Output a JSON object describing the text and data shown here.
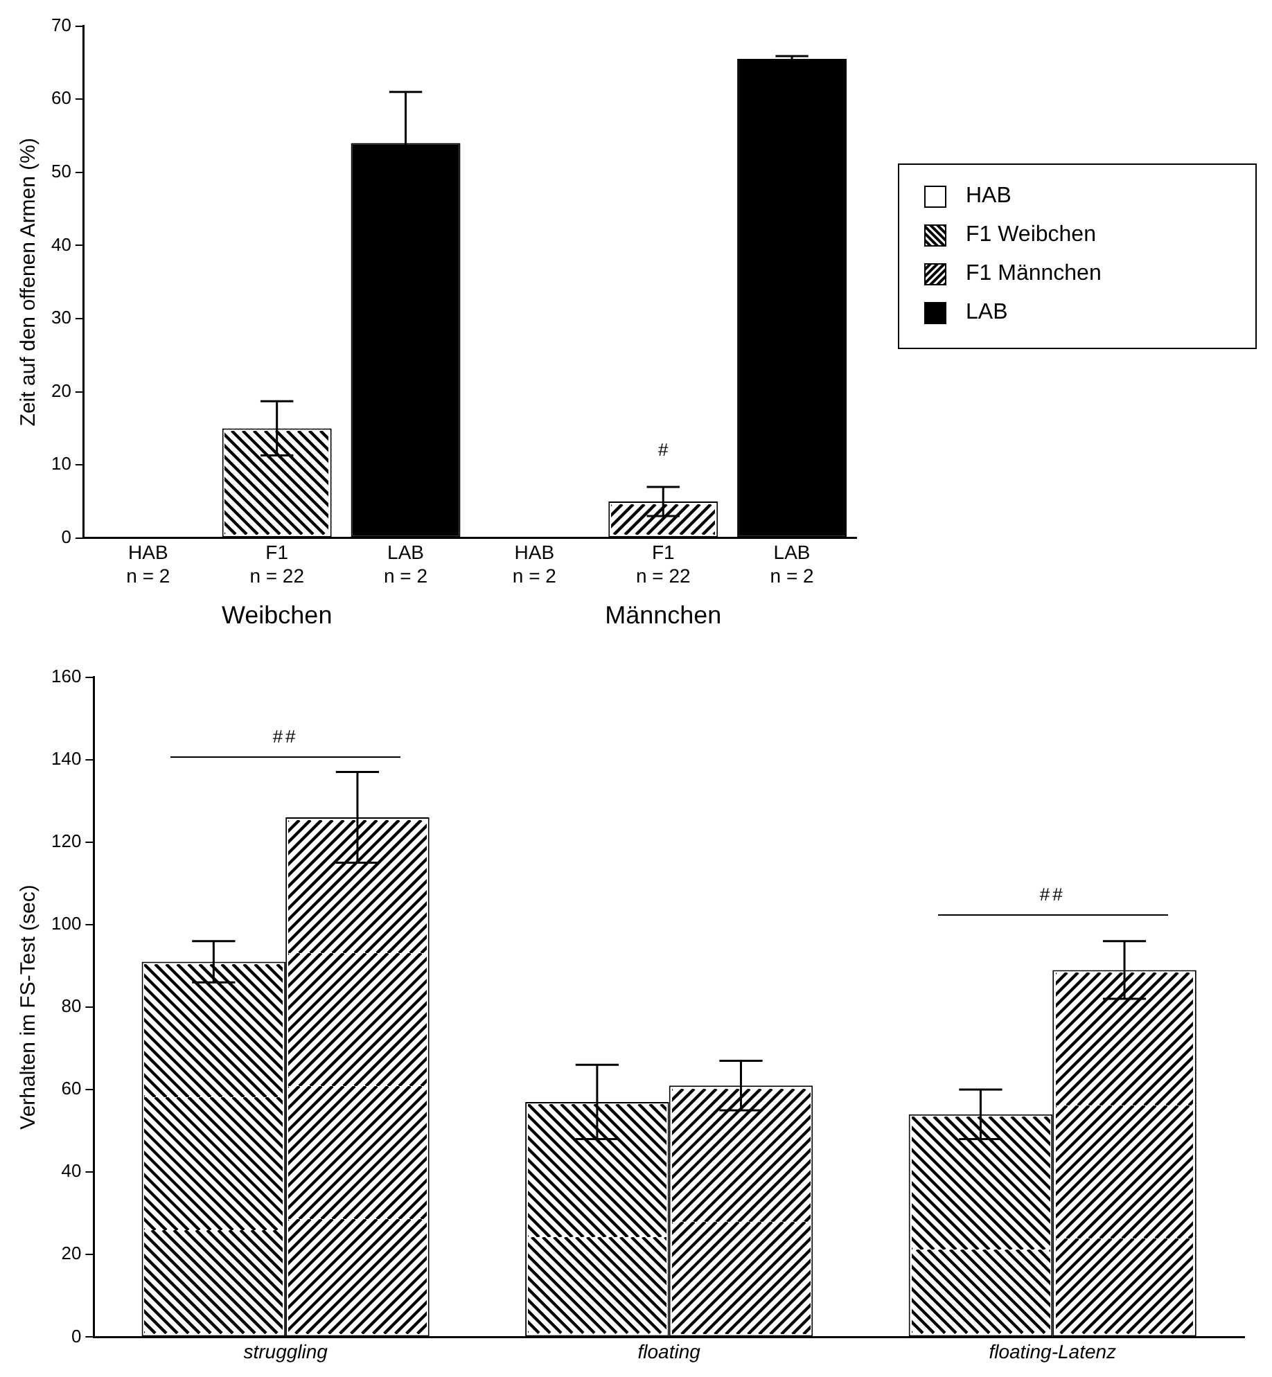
{
  "chart_data": [
    {
      "type": "bar",
      "categories": [
        "HAB\nn = 2",
        "F1\nn = 22",
        "LAB\nn = 2",
        "HAB\nn = 2",
        "F1\nn = 22",
        "LAB\nn = 2"
      ],
      "ylabel": "Zeit auf den offenen Armen (%)",
      "ylim": [
        0,
        70
      ],
      "yticks": [
        0,
        10,
        20,
        30,
        40,
        50,
        60,
        70
      ],
      "grid": false,
      "legend": "right",
      "series": [
        {
          "name": "HAB",
          "color": "#ffffff",
          "values": [
            0,
            null,
            null,
            0,
            null,
            null
          ]
        },
        {
          "name": "F1 Weibchen",
          "color": "#000000",
          "values": [
            null,
            15,
            null,
            null,
            null,
            null
          ],
          "errors": [
            null,
            3.7,
            null,
            null,
            null,
            null
          ]
        },
        {
          "name": "F1 Männchen",
          "color": "#000000",
          "values": [
            null,
            null,
            null,
            null,
            5,
            null
          ],
          "errors": [
            null,
            null,
            null,
            null,
            2,
            null
          ]
        },
        {
          "name": "LAB",
          "color": "#000000",
          "values": [
            null,
            null,
            54,
            null,
            null,
            65.5
          ],
          "errors": [
            null,
            null,
            7,
            null,
            null,
            0.4
          ]
        }
      ],
      "annotations": [
        "Weibchen",
        "Männchen",
        "#"
      ]
    },
    {
      "type": "bar",
      "categories": [
        "struggling",
        "floating",
        "floating-Latenz"
      ],
      "ylabel": "Verhalten im FS-Test (sec)",
      "ylim": [
        0,
        160
      ],
      "yticks": [
        0,
        20,
        40,
        60,
        80,
        100,
        120,
        140,
        160
      ],
      "grid": false,
      "series": [
        {
          "color": "#000000",
          "values": [
            91,
            57,
            54
          ],
          "errors": [
            5,
            9,
            6
          ]
        },
        {
          "color": "#000000",
          "values": [
            126,
            61,
            89
          ],
          "errors": [
            11,
            6,
            7
          ]
        }
      ],
      "annotations": [
        "##",
        "##"
      ]
    }
  ]
}
